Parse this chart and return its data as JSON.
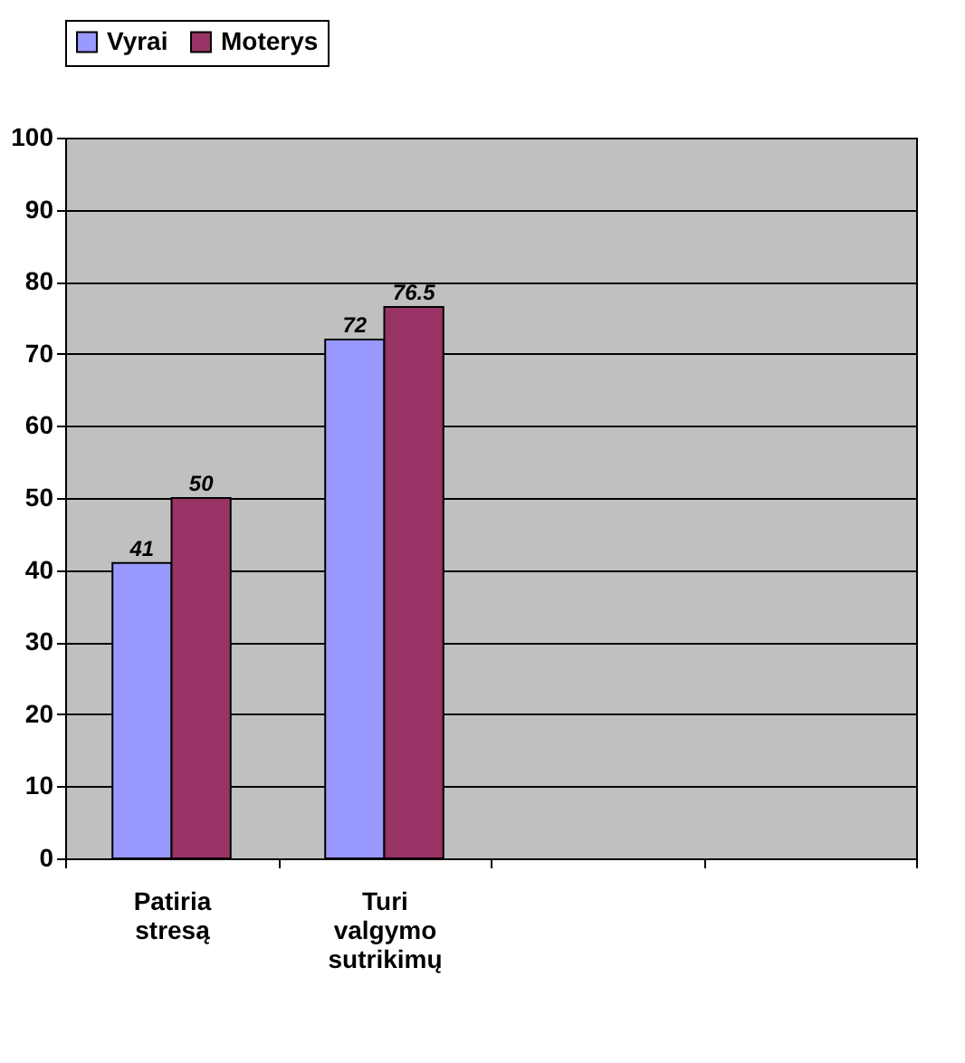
{
  "chart_data": {
    "type": "bar",
    "categories": [
      "Patiria stresą",
      "Turi valgymo sutrikimų",
      null,
      null
    ],
    "series": [
      {
        "name": "Vyrai",
        "color": "#9999ff",
        "values": [
          41,
          72,
          null,
          null
        ]
      },
      {
        "name": "Moterys",
        "color": "#993366",
        "values": [
          50,
          76.5,
          null,
          null
        ]
      }
    ],
    "ylim": [
      0,
      100
    ],
    "yticks": [
      0,
      10,
      20,
      30,
      40,
      50,
      60,
      70,
      80,
      90,
      100
    ],
    "grid": "y",
    "legend": "top",
    "data_labels": true
  }
}
